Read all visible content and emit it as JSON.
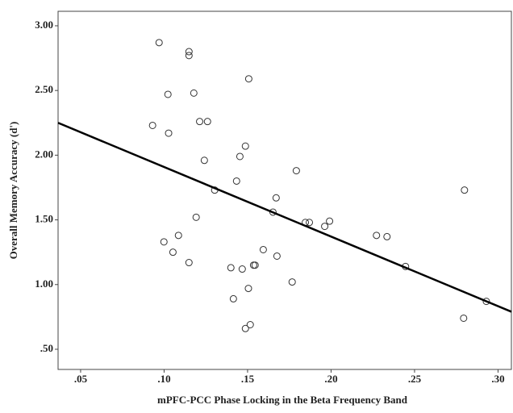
{
  "chart_data": {
    "type": "scatter",
    "x_label": "mPFC-PCC Phase Locking in the Beta Frequency Band",
    "y_label": "Overall Memory Accuracy (d')",
    "x": [
      0.097,
      0.1149,
      0.1149,
      0.1507,
      0.1023,
      0.1178,
      0.0931,
      0.1213,
      0.126,
      0.1027,
      0.1487,
      0.1454,
      0.1241,
      0.1792,
      0.1434,
      0.1303,
      0.2799,
      0.1671,
      0.1652,
      0.1192,
      0.1846,
      0.187,
      0.1991,
      0.1962,
      0.2272,
      0.2335,
      0.1086,
      0.0999,
      0.1594,
      0.1053,
      0.1676,
      0.1149,
      0.1536,
      0.1545,
      0.14,
      0.1468,
      0.2446,
      0.1767,
      0.1505,
      0.1415,
      0.2794,
      0.293,
      0.1516,
      0.1487
    ],
    "values": [
      2.87,
      2.8,
      2.77,
      2.59,
      2.47,
      2.48,
      2.23,
      2.26,
      2.26,
      2.17,
      2.07,
      1.99,
      1.96,
      1.88,
      1.8,
      1.73,
      1.73,
      1.67,
      1.56,
      1.52,
      1.48,
      1.48,
      1.49,
      1.45,
      1.38,
      1.37,
      1.38,
      1.33,
      1.27,
      1.25,
      1.22,
      1.17,
      1.15,
      1.15,
      1.13,
      1.12,
      1.14,
      1.02,
      0.97,
      0.89,
      0.74,
      0.87,
      0.69,
      0.66
    ],
    "color": "#333333",
    "trend_line": {
      "x": [
        0.0365,
        0.308
      ],
      "y": [
        2.25,
        0.79
      ],
      "color": "#000000"
    },
    "xlim": [
      0.0365,
      0.308
    ],
    "ylim": [
      0.344,
      3.112
    ],
    "xticks": [
      {
        "value": 0.05,
        "label": ".05"
      },
      {
        "value": 0.1,
        "label": ".10"
      },
      {
        "value": 0.15,
        "label": ".15"
      },
      {
        "value": 0.2,
        "label": ".20"
      },
      {
        "value": 0.25,
        "label": ".25"
      },
      {
        "value": 0.3,
        "label": ".30"
      }
    ],
    "yticks": [
      {
        "value": 0.5,
        "label": ".50"
      },
      {
        "value": 1.0,
        "label": "1.00"
      },
      {
        "value": 1.5,
        "label": "1.50"
      },
      {
        "value": 2.0,
        "label": "2.00"
      },
      {
        "value": 2.5,
        "label": "2.50"
      },
      {
        "value": 3.0,
        "label": "3.00"
      }
    ],
    "grid": false
  }
}
